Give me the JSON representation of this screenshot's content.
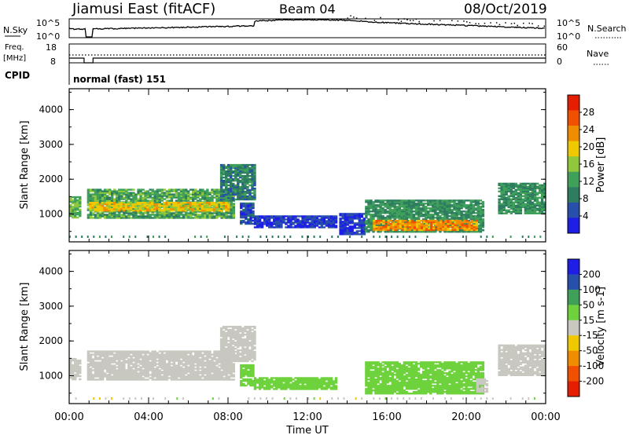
{
  "header": {
    "station": "Jiamusi East (fitACF)",
    "beam": "Beam 04",
    "date": "08/Oct/2019"
  },
  "noise_panel": {
    "left_label": "N.Sky",
    "right_label": "N.Search",
    "y_top": "10^5",
    "y_bottom": "10^0",
    "y_top_right": "10^5",
    "y_bottom_right": "10^0"
  },
  "freq_panel": {
    "left_label_1": "Freq.",
    "left_label_2": "[MHz]",
    "right_label": "Nave",
    "y_top": "18",
    "y_bottom": "8",
    "y_top_right": "60",
    "y_bottom_right": "0"
  },
  "cpid_panel": {
    "label": "CPID",
    "text": "normal (fast) 151"
  },
  "colors": {
    "power": [
      "#1e1ee6",
      "#2850aa",
      "#2e7d60",
      "#3fa05a",
      "#8fc83a",
      "#f0c800",
      "#f08c00",
      "#f05000",
      "#e61e00"
    ],
    "velocity": [
      "#e61e00",
      "#f05000",
      "#f08c00",
      "#f0c800",
      "#c8c8c0",
      "#6ed23c",
      "#3fa05a",
      "#2850aa",
      "#1e1ee6"
    ],
    "noise_line": "#000000"
  },
  "chart_data": [
    {
      "type": "heatmap",
      "name": "power",
      "ylabel": "Slant Range [km]",
      "ylim": [
        200,
        4600
      ],
      "yticks": [
        "1000",
        "2000",
        "3000",
        "4000"
      ],
      "colorbar_label": "Power [dB]",
      "colorbar_ticks": [
        "4",
        "8",
        "12",
        "16",
        "20",
        "24",
        "28"
      ],
      "bands": [
        {
          "t0": 0.0,
          "t1": 0.6,
          "r0": 880,
          "r1": 1500,
          "v": 16
        },
        {
          "t0": 0.9,
          "t1": 8.3,
          "r0": 870,
          "r1": 1700,
          "v": 14
        },
        {
          "t0": 1.0,
          "t1": 8.0,
          "r0": 1080,
          "r1": 1350,
          "v": 22
        },
        {
          "t0": 7.6,
          "t1": 9.3,
          "r0": 1400,
          "r1": 2400,
          "v": 10
        },
        {
          "t0": 8.6,
          "t1": 9.3,
          "r0": 700,
          "r1": 1300,
          "v": 6
        },
        {
          "t0": 9.3,
          "t1": 13.4,
          "r0": 600,
          "r1": 950,
          "v": 4
        },
        {
          "t0": 13.6,
          "t1": 14.8,
          "r0": 400,
          "r1": 1000,
          "v": 4
        },
        {
          "t0": 14.9,
          "t1": 20.9,
          "r0": 470,
          "r1": 1400,
          "v": 12
        },
        {
          "t0": 15.3,
          "t1": 20.5,
          "r0": 520,
          "r1": 800,
          "v": 26
        },
        {
          "t0": 21.6,
          "t1": 24.0,
          "r0": 1000,
          "r1": 1900,
          "v": 12
        }
      ]
    },
    {
      "type": "heatmap",
      "name": "velocity",
      "ylabel": "Slant Range [km]",
      "ylim": [
        200,
        4600
      ],
      "yticks": [
        "1000",
        "2000",
        "3000",
        "4000"
      ],
      "xlabel": "Time UT",
      "xticks": [
        "00:00",
        "04:00",
        "08:00",
        "12:00",
        "16:00",
        "20:00",
        "00:00"
      ],
      "colorbar_label": "Velocity [m s-1]",
      "colorbar_ticks": [
        "-200",
        "-100",
        "-50",
        "-15",
        "15",
        "50",
        "100",
        "200"
      ],
      "bands": [
        {
          "t0": 0.0,
          "t1": 0.6,
          "r0": 880,
          "r1": 1500,
          "v": 0
        },
        {
          "t0": 0.9,
          "t1": 8.3,
          "r0": 870,
          "r1": 1700,
          "v": 0
        },
        {
          "t0": 7.6,
          "t1": 9.3,
          "r0": 1400,
          "r1": 2400,
          "v": 0
        },
        {
          "t0": 8.6,
          "t1": 9.3,
          "r0": 700,
          "r1": 1300,
          "v": 30
        },
        {
          "t0": 9.3,
          "t1": 13.4,
          "r0": 600,
          "r1": 950,
          "v": 30
        },
        {
          "t0": 14.9,
          "t1": 20.9,
          "r0": 470,
          "r1": 1400,
          "v": 30
        },
        {
          "t0": 20.5,
          "t1": 21.0,
          "r0": 520,
          "r1": 900,
          "v": 0
        },
        {
          "t0": 21.6,
          "t1": 24.0,
          "r0": 1000,
          "r1": 1900,
          "v": 0
        }
      ]
    }
  ]
}
